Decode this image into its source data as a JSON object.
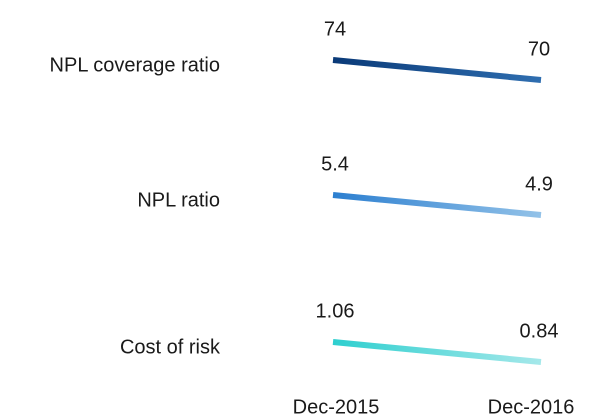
{
  "chart_data": {
    "type": "slope",
    "categories": [
      "Dec-2015",
      "Dec-2016"
    ],
    "series": [
      {
        "name": "NPL coverage ratio",
        "colors": [
          "#0a3a78",
          "#2f6eb0"
        ],
        "values": [
          74,
          70
        ]
      },
      {
        "name": "NPL ratio",
        "colors": [
          "#2c7fd0",
          "#93c2e8"
        ],
        "values": [
          5.4,
          4.9
        ]
      },
      {
        "name": "Cost of risk",
        "colors": [
          "#2ecfcf",
          "#a5e8ea"
        ],
        "values": [
          1.06,
          0.84
        ]
      }
    ]
  }
}
